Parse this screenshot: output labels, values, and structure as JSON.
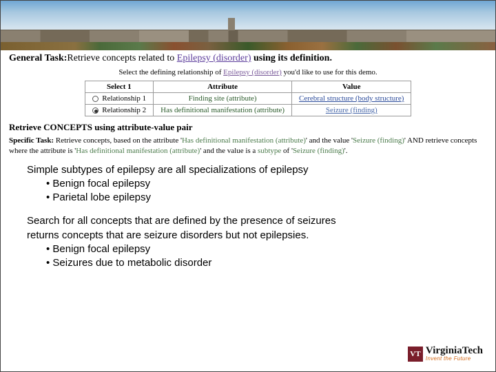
{
  "banner": {
    "sky_gradient": [
      "#6fa7d4",
      "#a8c8e0",
      "#d8e6f0"
    ],
    "building_colors": [
      "#8a8070",
      "#756a58",
      "#9a9080",
      "#6a6050"
    ],
    "tree_colors": [
      "#7a6030",
      "#4a6a3a",
      "#8a5030",
      "#5a7a4a"
    ]
  },
  "general_task": {
    "label": "General Task:",
    "text_before": "Retrieve concepts related to ",
    "link": "Epilepsy (disorder)",
    "text_after": " using its definition."
  },
  "subheading": {
    "text_before": "Select the defining relationship of ",
    "link": "Epilepsy (disorder)",
    "text_after": " you'd like to use for this demo."
  },
  "table": {
    "headers": {
      "select": "Select 1",
      "attribute": "Attribute",
      "value": "Value"
    },
    "rows": [
      {
        "checked": false,
        "label": "Relationship 1",
        "attribute": "Finding site (attribute)",
        "value": "Cerebral structure (body structure)",
        "value_is_link": true
      },
      {
        "checked": true,
        "label": "Relationship 2",
        "attribute": "Has definitional manifestation (attribute)",
        "value": "Seizure (finding)",
        "value_is_link": true
      }
    ]
  },
  "retrieve_header": "Retrieve CONCEPTS using attribute-value pair",
  "specific_task": {
    "label": "Specific Task:",
    "seg1": " Retrieve concepts, based on the attribute '",
    "attr": "Has definitional manifestation (attribute)",
    "seg2": "' and the value '",
    "val": "Seizure (finding)",
    "seg3": "' AND retrieve concepts where the attribute is '",
    "attr2": "Has definitional manifestation (attribute)",
    "seg4": "' and the value is a ",
    "subtype": "subtype",
    "seg5": " of '",
    "val2": "Seizure (finding)",
    "seg6": "'."
  },
  "body": {
    "para1_line1": "Simple subtypes of epilepsy are all specializations of epilepsy",
    "para1_bullets": [
      "Benign focal epilepsy",
      "Parietal lobe epilepsy"
    ],
    "para2_line1": "Search for all concepts that are defined by the presence of seizures",
    "para2_line2": "returns concepts that are seizure disorders but not epilepsies.",
    "para2_bullets": [
      "Benign focal epilepsy",
      "Seizures due to metabolic disorder"
    ]
  },
  "logo": {
    "mark": "VT",
    "name": "VirginiaTech",
    "tagline": "Invent the Future",
    "mark_bg": "#7a1e2b",
    "tag_color": "#d46a1a"
  }
}
